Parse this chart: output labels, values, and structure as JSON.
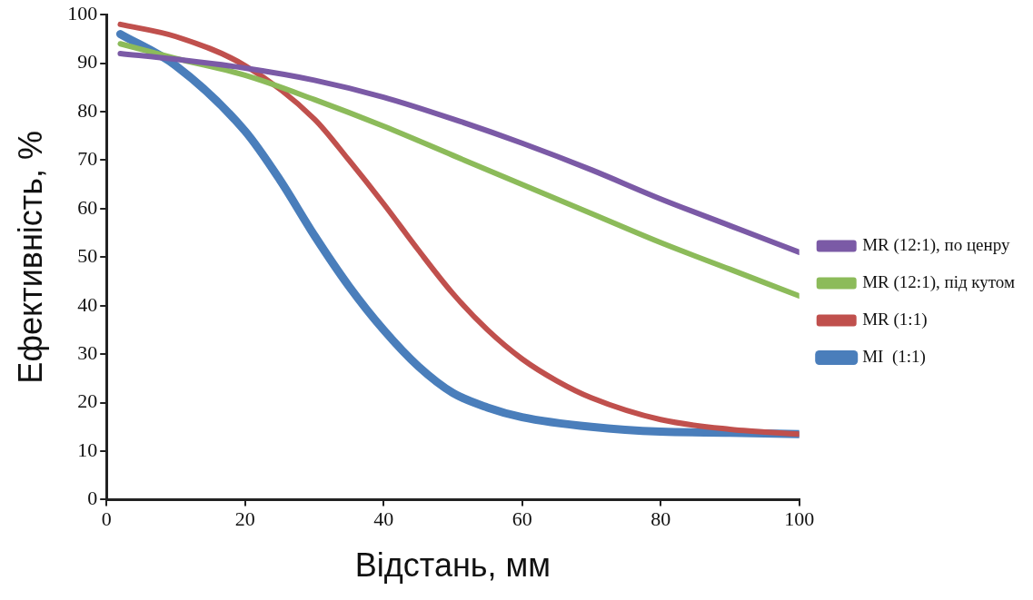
{
  "chart_data": {
    "type": "line",
    "xlabel": "Відстань, мм",
    "ylabel": "Ефективність, %",
    "xlim": [
      0,
      100
    ],
    "xticks": [
      0,
      20,
      40,
      60,
      80,
      100
    ],
    "ylim": [
      0,
      100
    ],
    "yticks": [
      0,
      10,
      20,
      30,
      40,
      50,
      60,
      70,
      80,
      90,
      100
    ],
    "legend": "right",
    "marker": "none",
    "line_style": "solid",
    "series": [
      {
        "name": "MR (12:1), по ценру",
        "color": "#7b5aa6",
        "x": [
          2,
          10,
          20,
          30,
          40,
          50,
          60,
          70,
          80,
          90,
          100
        ],
        "values": [
          92,
          90.8,
          89,
          86.5,
          83,
          78.5,
          73.5,
          68,
          62,
          56.5,
          51
        ]
      },
      {
        "name": "MR (12:1), під кутом",
        "color": "#8cbb5a",
        "x": [
          2,
          10,
          20,
          30,
          40,
          50,
          60,
          70,
          80,
          90,
          100
        ],
        "values": [
          94,
          91,
          87.5,
          82.5,
          77,
          71,
          65,
          59,
          53,
          47.5,
          42
        ]
      },
      {
        "name": "MR (1:1)",
        "color": "#c0504d",
        "x": [
          2,
          10,
          20,
          30,
          35,
          40,
          45,
          50,
          55,
          60,
          65,
          70,
          80,
          90,
          100
        ],
        "values": [
          98,
          95.5,
          89.5,
          78.5,
          70,
          61,
          51.5,
          42.5,
          35,
          29,
          24.5,
          21,
          16.5,
          14.5,
          13.5
        ]
      },
      {
        "name": "MI  (1:1)",
        "color": "#4a7ebb",
        "x": [
          2,
          10,
          20,
          25,
          30,
          35,
          40,
          45,
          50,
          55,
          60,
          70,
          80,
          90,
          100
        ],
        "values": [
          96,
          89.5,
          76,
          66,
          54.5,
          44,
          35,
          27.5,
          22,
          19,
          17,
          15,
          14,
          13.8,
          13.5
        ]
      }
    ]
  }
}
